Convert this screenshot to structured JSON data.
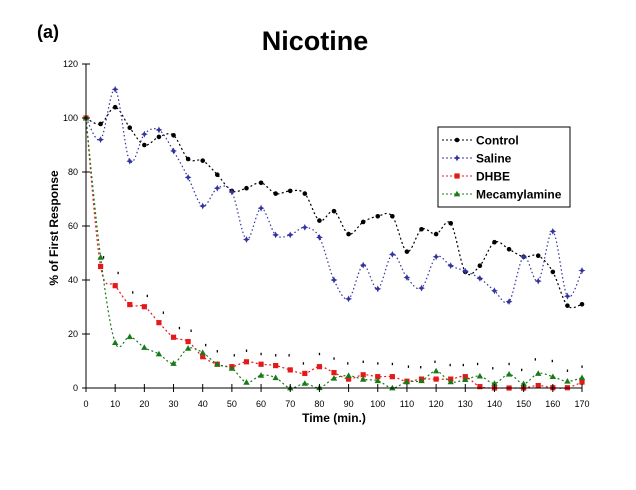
{
  "panel_label": "(a)",
  "title": "Nicotine",
  "chart_data": {
    "type": "line",
    "title": "Nicotine",
    "panel_label": "(a)",
    "xlabel": "Time (min.)",
    "ylabel": "% of First Response",
    "xlim": [
      0,
      170
    ],
    "ylim": [
      0,
      120
    ],
    "x_ticks": [
      0,
      10,
      20,
      30,
      40,
      50,
      60,
      70,
      80,
      90,
      100,
      110,
      120,
      130,
      140,
      150,
      160,
      170
    ],
    "y_ticks": [
      0,
      20,
      40,
      60,
      80,
      100,
      120
    ],
    "grid": false,
    "legend_position": "upper right (inside plot)",
    "x": [
      0,
      5,
      10,
      15,
      20,
      25,
      30,
      35,
      40,
      45,
      50,
      55,
      60,
      65,
      70,
      75,
      80,
      85,
      90,
      95,
      100,
      105,
      110,
      115,
      120,
      125,
      130,
      135,
      140,
      145,
      150,
      155,
      160,
      165,
      170
    ],
    "series": [
      {
        "name": "Control",
        "color": "#000000",
        "marker": "circle",
        "values": [
          100,
          97.8,
          104,
          96.4,
          90,
          93,
          93.6,
          84.8,
          84.2,
          79,
          73,
          74,
          76,
          72,
          73,
          72,
          62,
          65.5,
          57,
          61.5,
          63.6,
          63.6,
          50.5,
          58.8,
          57,
          61,
          43,
          45.3,
          54,
          51.4,
          48.6,
          49,
          43,
          30.5,
          31
        ]
      },
      {
        "name": "Saline",
        "color": "#3333a0",
        "marker": "star",
        "values": [
          100,
          92,
          110.6,
          84,
          94,
          95.6,
          87.8,
          78,
          67.4,
          74,
          72.6,
          55,
          66.6,
          56.7,
          56.7,
          59.5,
          55.8,
          40,
          33,
          45.5,
          36.7,
          49.5,
          40.9,
          37,
          48.6,
          45.3,
          43.3,
          40.6,
          36,
          32,
          48.6,
          39.6,
          58,
          34,
          43.5
        ]
      },
      {
        "name": "DHBE",
        "color": "#e41a1a",
        "marker": "square",
        "values": [
          100,
          45,
          37.9,
          30.9,
          30.1,
          24.2,
          18.8,
          17.2,
          11.6,
          8.8,
          7.9,
          9.7,
          8.8,
          8.3,
          6.7,
          5.4,
          7.9,
          5.7,
          3.3,
          4.9,
          4.2,
          4.2,
          2.5,
          3.3,
          3.3,
          3.3,
          4.2,
          0.5,
          0,
          0,
          0,
          0.9,
          0.1,
          0.1,
          2.2
        ]
      },
      {
        "name": "Mecamylamine",
        "color": "#1a7a1a",
        "marker": "triangle",
        "values": [
          100,
          48.4,
          16.8,
          19,
          15,
          12.6,
          9.1,
          14.7,
          13.1,
          8.8,
          7.3,
          2.1,
          4.7,
          3.8,
          0,
          1.7,
          0.1,
          3.6,
          4.6,
          3.2,
          2.7,
          0,
          2.3,
          2.7,
          6.3,
          2.3,
          3.1,
          4.4,
          1.7,
          5.1,
          1.6,
          5.4,
          4.2,
          2.5,
          3.8
        ]
      }
    ],
    "error_marks": [
      [
        6,
        48.4
      ],
      [
        11,
        42.6
      ],
      [
        16,
        35.4
      ],
      [
        21,
        34.1
      ],
      [
        26.5,
        27.9
      ],
      [
        32,
        22.2
      ],
      [
        36,
        21.2
      ],
      [
        41,
        15.9
      ],
      [
        45,
        13.6
      ],
      [
        50.8,
        12.1
      ],
      [
        55,
        13.8
      ],
      [
        60,
        12.6
      ],
      [
        65,
        12.1
      ],
      [
        69.6,
        12.1
      ],
      [
        74.5,
        9.1
      ],
      [
        80,
        12.6
      ],
      [
        85,
        10.9
      ],
      [
        89.7,
        9.1
      ],
      [
        95,
        9.7
      ],
      [
        100,
        9.1
      ],
      [
        105,
        8.9
      ],
      [
        110.5,
        7.9
      ],
      [
        114.7,
        7.7
      ],
      [
        119.6,
        9.7
      ],
      [
        124.8,
        8.5
      ],
      [
        129.3,
        8.5
      ],
      [
        134.2,
        8.9
      ],
      [
        139.4,
        7.3
      ],
      [
        145,
        8.9
      ],
      [
        149.3,
        6.7
      ],
      [
        154,
        10.6
      ],
      [
        159.8,
        10
      ],
      [
        165,
        6.4
      ],
      [
        170,
        7.9
      ]
    ]
  }
}
